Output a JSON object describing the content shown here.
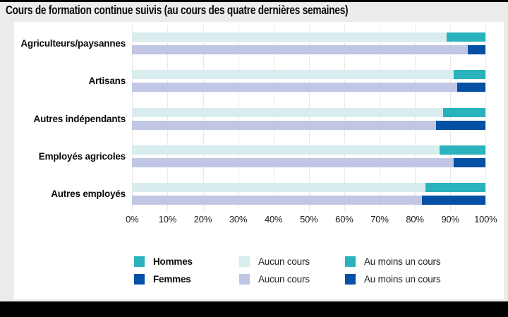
{
  "title": "Cours de formation continue suivis (au cours des quatre dernières semaines)",
  "colors": {
    "page_bg": "#ececec",
    "panel_bg": "#ffffff",
    "frame_bars": "#000000",
    "grid": "#e9e9e9",
    "hommes_aucun": "#d9ecee",
    "hommes_au_moins": "#2bb3bd",
    "femmes_aucun": "#c1c6e5",
    "femmes_au_moins": "#0450a4"
  },
  "chart_data": {
    "type": "bar",
    "orientation": "horizontal",
    "stacked": true,
    "unit": "%",
    "title": "Cours de formation continue suivis (au cours des quatre dernières semaines)",
    "categories": [
      "Agriculteurs/paysannes",
      "Artisans",
      "Autres indépendants",
      "Employés agricoles",
      "Autres employés"
    ],
    "group_per_category": [
      "Hommes",
      "Femmes"
    ],
    "series": [
      {
        "name": "Hommes – Aucun cours",
        "color": "#d9ecee",
        "values": [
          89,
          91,
          88,
          87,
          83
        ]
      },
      {
        "name": "Hommes – Au moins un cours",
        "color": "#2bb3bd",
        "values": [
          11,
          9,
          12,
          13,
          17
        ]
      },
      {
        "name": "Femmes – Aucun cours",
        "color": "#c1c6e5",
        "values": [
          95,
          92,
          86,
          91,
          82
        ]
      },
      {
        "name": "Femmes – Au moins un cours",
        "color": "#0450a4",
        "values": [
          5,
          8,
          14,
          9,
          18
        ]
      }
    ],
    "xlim": [
      0,
      100
    ],
    "x_tick_labels": [
      "0%",
      "10%",
      "20%",
      "30%",
      "40%",
      "50%",
      "60%",
      "70%",
      "80%",
      "90%",
      "100%"
    ],
    "grid": true,
    "legend_position": "bottom"
  },
  "legend": {
    "columns": [
      {
        "items": [
          {
            "label": "Hommes",
            "swatch": "#2bb3bd",
            "bold": true
          },
          {
            "label": "Femmes",
            "swatch": "#0450a4",
            "bold": true
          }
        ]
      },
      {
        "items": [
          {
            "label": "Aucun cours",
            "swatch": "#d9ecee",
            "bold": false
          },
          {
            "label": "Aucun cours",
            "swatch": "#c1c6e5",
            "bold": false
          }
        ]
      },
      {
        "items": [
          {
            "label": "Au moins un cours",
            "swatch": "#2bb3bd",
            "bold": false
          },
          {
            "label": "Au moins un cours",
            "swatch": "#0450a4",
            "bold": false
          }
        ]
      }
    ]
  }
}
